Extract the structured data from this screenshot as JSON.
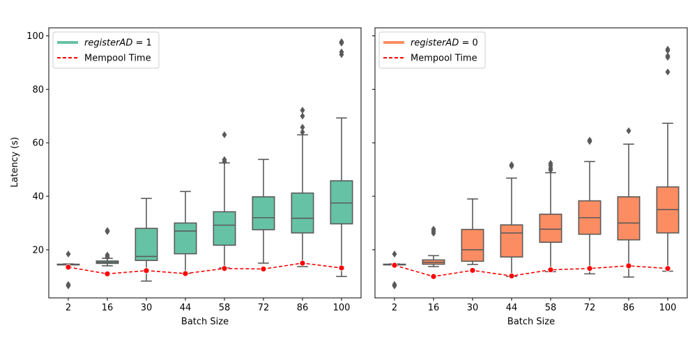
{
  "chart_data": [
    {
      "type": "box",
      "xlabel": "Batch Size",
      "ylabel": "Latency (s)",
      "ylim": [
        2,
        103
      ],
      "yticks": [
        20,
        40,
        60,
        80,
        100
      ],
      "legend_position": "top-left",
      "categories": [
        "2",
        "16",
        "30",
        "44",
        "58",
        "72",
        "86",
        "100"
      ],
      "box_color": "#66c2a5",
      "series": [
        {
          "name_prefix": "registerAD",
          "name_suffix": " = 1",
          "kind": "box",
          "boxes": [
            {
              "min": 14.5,
              "q1": 14.5,
              "median": 14.5,
              "q3": 14.6,
              "max": 14.7,
              "outliers": [
                18.4,
                6.5,
                7.0
              ]
            },
            {
              "min": 14.0,
              "q1": 14.9,
              "median": 15.3,
              "q3": 15.8,
              "max": 16.8,
              "outliers": [
                17.3,
                18.0,
                26.8,
                27.2
              ]
            },
            {
              "min": 8.3,
              "q1": 16.0,
              "median": 17.5,
              "q3": 28.0,
              "max": 39.2,
              "outliers": []
            },
            {
              "min": 11.2,
              "q1": 18.5,
              "median": 27.0,
              "q3": 30.0,
              "max": 41.8,
              "outliers": []
            },
            {
              "min": 13.2,
              "q1": 21.7,
              "median": 29.2,
              "q3": 34.2,
              "max": 52.5,
              "outliers": [
                53.0,
                53.7,
                63.0
              ]
            },
            {
              "min": 15.0,
              "q1": 27.5,
              "median": 32.0,
              "q3": 39.8,
              "max": 53.8,
              "outliers": []
            },
            {
              "min": 13.7,
              "q1": 26.3,
              "median": 31.8,
              "q3": 41.2,
              "max": 63.0,
              "outliers": [
                64.0,
                65.8,
                70.0,
                72.2
              ]
            },
            {
              "min": 10.0,
              "q1": 29.7,
              "median": 37.5,
              "q3": 45.8,
              "max": 69.3,
              "outliers": [
                93.0,
                94.0,
                97.3,
                97.8
              ]
            }
          ]
        },
        {
          "name": "Mempool Time",
          "kind": "line",
          "color": "#ff0000",
          "values": [
            13.5,
            11.0,
            12.2,
            11.1,
            13.0,
            12.8,
            15.0,
            13.2
          ]
        }
      ]
    },
    {
      "type": "box",
      "xlabel": "Batch Size",
      "ylabel": "",
      "ylim": [
        2,
        103
      ],
      "yticks": [
        20,
        40,
        60,
        80,
        100
      ],
      "legend_position": "top-left",
      "categories": [
        "2",
        "16",
        "30",
        "44",
        "58",
        "72",
        "86",
        "100"
      ],
      "box_color": "#fc8d62",
      "series": [
        {
          "name_prefix": "registerAD",
          "name_suffix": " = 0",
          "kind": "box",
          "boxes": [
            {
              "min": 14.5,
              "q1": 14.5,
              "median": 14.5,
              "q3": 14.6,
              "max": 14.7,
              "outliers": [
                18.4,
                6.5,
                7.0
              ]
            },
            {
              "min": 13.7,
              "q1": 14.6,
              "median": 15.3,
              "q3": 16.2,
              "max": 17.8,
              "outliers": [
                26.2,
                27.0,
                27.7
              ]
            },
            {
              "min": 14.5,
              "q1": 15.7,
              "median": 20.0,
              "q3": 27.6,
              "max": 39.0,
              "outliers": []
            },
            {
              "min": 10.0,
              "q1": 17.3,
              "median": 26.3,
              "q3": 29.3,
              "max": 46.8,
              "outliers": [
                51.3,
                51.8
              ]
            },
            {
              "min": 11.8,
              "q1": 22.8,
              "median": 27.7,
              "q3": 33.3,
              "max": 48.8,
              "outliers": [
                49.8,
                50.5,
                51.5,
                52.3
              ]
            },
            {
              "min": 11.0,
              "q1": 25.8,
              "median": 32.0,
              "q3": 38.3,
              "max": 53.0,
              "outliers": [
                60.5,
                61.0
              ]
            },
            {
              "min": 9.8,
              "q1": 23.7,
              "median": 30.0,
              "q3": 39.8,
              "max": 59.5,
              "outliers": [
                64.5
              ]
            },
            {
              "min": 12.0,
              "q1": 26.3,
              "median": 35.0,
              "q3": 43.5,
              "max": 67.3,
              "outliers": [
                86.5,
                92.0,
                92.5,
                94.5,
                95.0
              ]
            }
          ]
        },
        {
          "name": "Mempool Time",
          "kind": "line",
          "color": "#ff0000",
          "values": [
            14.2,
            10.0,
            12.3,
            10.2,
            12.5,
            13.0,
            14.0,
            13.0
          ]
        }
      ]
    }
  ]
}
